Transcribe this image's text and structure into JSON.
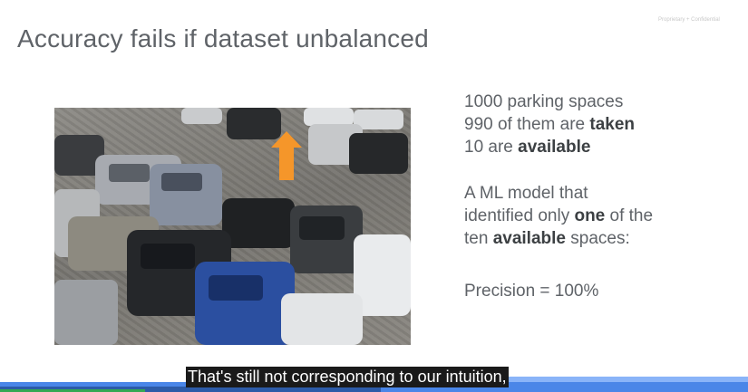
{
  "slide": {
    "confidential_label": "Proprietary + Confidential",
    "title": "Accuracy fails if dataset unbalanced",
    "lines": {
      "spaces": "1000 parking spaces",
      "taken_prefix": "990 of them are ",
      "taken_bold": "taken",
      "avail_prefix": "10 are ",
      "avail_bold": "available",
      "model_line1": "A ML model that",
      "model_line2_prefix": "identified only ",
      "model_line2_bold": "one",
      "model_line2_suffix": " of the",
      "model_line3_prefix": "ten ",
      "model_line3_bold": "available",
      "model_line3_suffix": " spaces:",
      "precision": "Precision = 100%"
    }
  },
  "caption": {
    "text": "That's still not corresponding to our intuition,"
  },
  "colors": {
    "arrow": "#f5962a",
    "title_gray": "#5f6368",
    "stripe_blue": "#4a86e8",
    "stripe_green": "#34a853"
  },
  "icons": {
    "arrow": "up-arrow-icon"
  }
}
